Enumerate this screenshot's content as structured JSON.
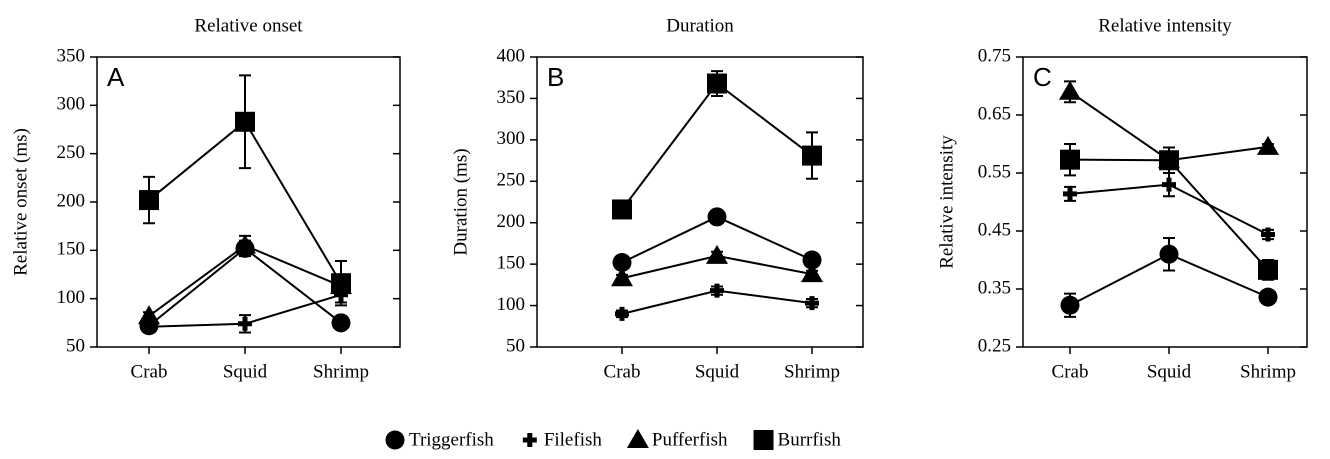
{
  "chart_data": [
    {
      "type": "line",
      "title": "Relative onset",
      "annotation": "A",
      "y_label": "Relative onset (ms)",
      "categories": [
        "Crab",
        "Squid",
        "Shrimp"
      ],
      "ylim": [
        50,
        350
      ],
      "yticks": [
        50,
        100,
        150,
        200,
        250,
        300,
        350
      ],
      "series": [
        {
          "name": "Triggerfish",
          "marker": "circle",
          "color": "#000000",
          "values": [
            72,
            152,
            75
          ],
          "errors": [
            5,
            8,
            4
          ]
        },
        {
          "name": "Filefish",
          "marker": "plus",
          "color": "#000000",
          "values": [
            71,
            74,
            104
          ],
          "errors": [
            3,
            9,
            8
          ]
        },
        {
          "name": "Pufferfish",
          "marker": "triangle",
          "color": "#000000",
          "values": [
            82,
            155,
            113
          ],
          "errors": [
            4,
            10,
            5
          ]
        },
        {
          "name": "Burrfish",
          "marker": "square",
          "color": "#000000",
          "values": [
            202,
            283,
            116
          ],
          "errors": [
            24,
            48,
            23
          ]
        }
      ]
    },
    {
      "type": "line",
      "title": "Duration",
      "annotation": "B",
      "y_label": "Duration (ms)",
      "categories": [
        "Crab",
        "Squid",
        "Shrimp"
      ],
      "ylim": [
        50,
        400
      ],
      "yticks": [
        50,
        100,
        150,
        200,
        250,
        300,
        350,
        400
      ],
      "series": [
        {
          "marker": "circle",
          "color": "#000000",
          "values": [
            152,
            207,
            155
          ],
          "errors": [
            5,
            5,
            5
          ]
        },
        {
          "marker": "plus",
          "color": "#000000",
          "values": [
            90,
            118,
            103
          ],
          "errors": [
            4,
            5,
            5
          ]
        },
        {
          "marker": "triangle",
          "color": "#000000",
          "values": [
            133,
            160,
            138
          ],
          "errors": [
            4,
            5,
            4
          ]
        },
        {
          "marker": "square",
          "color": "#000000",
          "values": [
            216,
            368,
            281
          ],
          "errors": [
            8,
            15,
            28
          ]
        }
      ]
    },
    {
      "type": "line",
      "title": "Relative intensity",
      "annotation": "C",
      "y_label": "Relative intensity",
      "categories": [
        "Crab",
        "Squid",
        "Shrimp"
      ],
      "ylim": [
        0.25,
        0.75
      ],
      "yticks": [
        0.25,
        0.35,
        0.45,
        0.55,
        0.65,
        0.75
      ],
      "series": [
        {
          "marker": "circle",
          "color": "#000000",
          "values": [
            0.322,
            0.41,
            0.336
          ],
          "errors": [
            0.02,
            0.028,
            0.008
          ]
        },
        {
          "marker": "plus",
          "color": "#000000",
          "values": [
            0.514,
            0.53,
            0.444
          ],
          "errors": [
            0.012,
            0.02,
            0.008
          ]
        },
        {
          "marker": "triangle",
          "color": "#000000",
          "values": [
            0.69,
            0.572,
            0.595
          ],
          "errors": [
            0.018,
            0.01,
            0.005
          ]
        },
        {
          "marker": "square",
          "color": "#000000",
          "values": [
            0.573,
            0.572,
            0.383
          ],
          "errors": [
            0.027,
            0.022,
            0.017
          ]
        }
      ]
    }
  ]
}
